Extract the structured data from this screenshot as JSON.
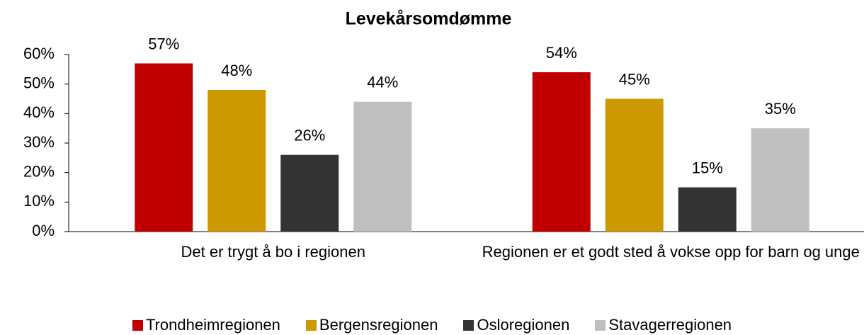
{
  "chart_data": {
    "type": "bar",
    "title": "Levekårsomdømme",
    "categories": [
      "Det er trygt å bo i regionen",
      "Regionen er et godt sted å vokse opp for barn og unge"
    ],
    "series": [
      {
        "name": "Trondheimregionen",
        "color": "#c00000",
        "values": [
          57,
          54
        ],
        "value_labels": [
          "57%",
          "54%"
        ]
      },
      {
        "name": "Bergensregionen",
        "color": "#cc9900",
        "values": [
          48,
          45
        ],
        "value_labels": [
          "48%",
          "45%"
        ]
      },
      {
        "name": "Osloregionen",
        "color": "#333333",
        "values": [
          26,
          15
        ],
        "value_labels": [
          "26%",
          "15%"
        ]
      },
      {
        "name": "Stavagerregionen",
        "color": "#bfbfbf",
        "values": [
          44,
          35
        ],
        "value_labels": [
          "44%",
          "35%"
        ]
      }
    ],
    "ylim": [
      0,
      60
    ],
    "yticks": [
      {
        "value": 0,
        "label": "0%"
      },
      {
        "value": 10,
        "label": "10%"
      },
      {
        "value": 20,
        "label": "20%"
      },
      {
        "value": 30,
        "label": "30%"
      },
      {
        "value": 40,
        "label": "40%"
      },
      {
        "value": 50,
        "label": "50%"
      },
      {
        "value": 60,
        "label": "60%"
      }
    ],
    "legend": "bottom"
  }
}
